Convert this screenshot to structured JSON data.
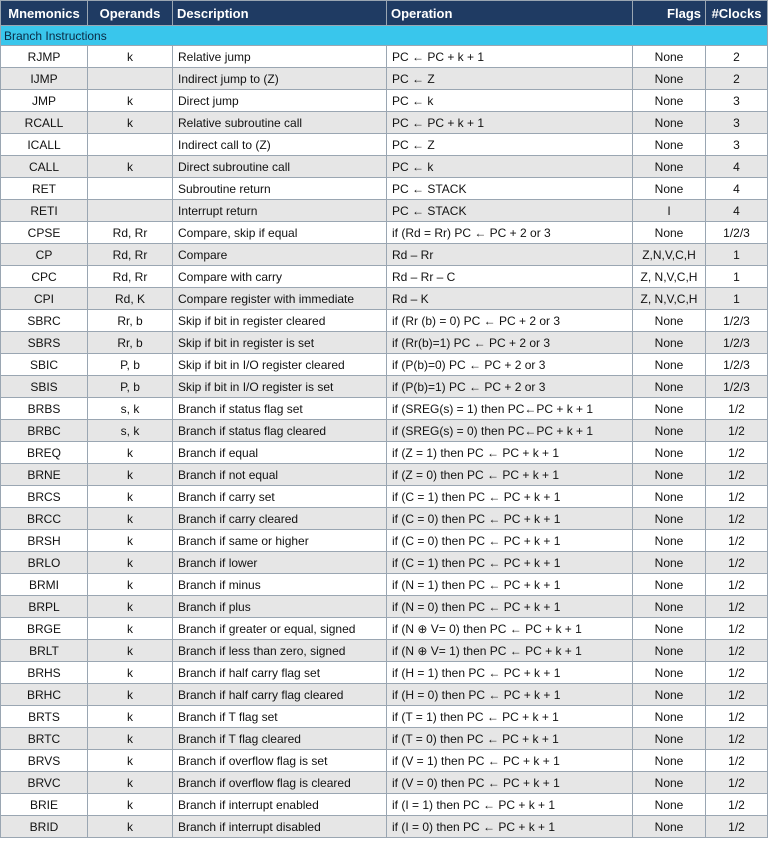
{
  "headers": {
    "mnemonics": "Mnemonics",
    "operands": "Operands",
    "description": "Description",
    "operation": "Operation",
    "flags": "Flags",
    "clocks": "#Clocks"
  },
  "section_title": "Branch Instructions",
  "rows": [
    [
      "RJMP",
      "k",
      "Relative jump",
      "PC ← PC + k + 1",
      "None",
      "2"
    ],
    [
      "IJMP",
      "",
      "Indirect jump to (Z)",
      "PC ← Z",
      "None",
      "2"
    ],
    [
      "JMP",
      "k",
      "Direct jump",
      "PC ← k",
      "None",
      "3"
    ],
    [
      "RCALL",
      "k",
      "Relative subroutine call",
      "PC ← PC + k + 1",
      "None",
      "3"
    ],
    [
      "ICALL",
      "",
      "Indirect call to (Z)",
      "PC ← Z",
      "None",
      "3"
    ],
    [
      "CALL",
      "k",
      "Direct subroutine call",
      "PC ← k",
      "None",
      "4"
    ],
    [
      "RET",
      "",
      "Subroutine return",
      "PC ← STACK",
      "None",
      "4"
    ],
    [
      "RETI",
      "",
      "Interrupt return",
      "PC ← STACK",
      "I",
      "4"
    ],
    [
      "CPSE",
      "Rd, Rr",
      "Compare, skip if equal",
      "if (Rd = Rr) PC ← PC + 2 or 3",
      "None",
      "1/2/3"
    ],
    [
      "CP",
      "Rd, Rr",
      "Compare",
      "Rd – Rr",
      "Z,N,V,C,H",
      "1"
    ],
    [
      "CPC",
      "Rd, Rr",
      "Compare with carry",
      "Rd – Rr – C",
      "Z, N,V,C,H",
      "1"
    ],
    [
      "CPI",
      "Rd, K",
      "Compare register with immediate",
      "Rd – K",
      "Z, N,V,C,H",
      "1"
    ],
    [
      "SBRC",
      "Rr, b",
      "Skip if bit in register cleared",
      "if (Rr (b) = 0) PC ← PC + 2 or 3",
      "None",
      "1/2/3"
    ],
    [
      "SBRS",
      "Rr, b",
      "Skip if bit in register is set",
      "if (Rr(b)=1) PC ← PC + 2 or 3",
      "None",
      "1/2/3"
    ],
    [
      "SBIC",
      "P, b",
      "Skip if bit in I/O register cleared",
      "if (P(b)=0) PC ← PC + 2 or 3",
      "None",
      "1/2/3"
    ],
    [
      "SBIS",
      "P, b",
      "Skip if bit in I/O register is set",
      "if (P(b)=1) PC ← PC + 2 or 3",
      "None",
      "1/2/3"
    ],
    [
      "BRBS",
      "s, k",
      "Branch if status flag set",
      "if (SREG(s) = 1) then PC←PC + k + 1",
      "None",
      "1/2"
    ],
    [
      "BRBC",
      "s, k",
      "Branch if status flag cleared",
      "if (SREG(s) = 0) then PC←PC + k + 1",
      "None",
      "1/2"
    ],
    [
      "BREQ",
      "k",
      "Branch if equal",
      "if (Z = 1) then PC ← PC + k + 1",
      "None",
      "1/2"
    ],
    [
      "BRNE",
      "k",
      "Branch if not equal",
      "if (Z = 0) then PC ← PC + k + 1",
      "None",
      "1/2"
    ],
    [
      "BRCS",
      "k",
      "Branch if carry set",
      "if (C = 1) then PC ← PC + k + 1",
      "None",
      "1/2"
    ],
    [
      "BRCC",
      "k",
      "Branch if carry cleared",
      "if (C = 0) then PC ← PC + k + 1",
      "None",
      "1/2"
    ],
    [
      "BRSH",
      "k",
      "Branch if same or higher",
      "if (C = 0) then PC ← PC + k + 1",
      "None",
      "1/2"
    ],
    [
      "BRLO",
      "k",
      "Branch if lower",
      "if (C = 1) then PC ← PC + k + 1",
      "None",
      "1/2"
    ],
    [
      "BRMI",
      "k",
      "Branch if minus",
      "if (N = 1) then PC ← PC + k + 1",
      "None",
      "1/2"
    ],
    [
      "BRPL",
      "k",
      "Branch if plus",
      "if (N = 0) then PC ← PC + k + 1",
      "None",
      "1/2"
    ],
    [
      "BRGE",
      "k",
      "Branch if greater or equal, signed",
      "if (N ⊕ V= 0) then PC ← PC + k + 1",
      "None",
      "1/2"
    ],
    [
      "BRLT",
      "k",
      "Branch if less than zero, signed",
      "if (N ⊕ V= 1) then PC ← PC + k + 1",
      "None",
      "1/2"
    ],
    [
      "BRHS",
      "k",
      "Branch if half carry flag set",
      "if (H = 1) then PC ← PC + k + 1",
      "None",
      "1/2"
    ],
    [
      "BRHC",
      "k",
      "Branch if half carry flag cleared",
      "if (H = 0) then PC ← PC + k + 1",
      "None",
      "1/2"
    ],
    [
      "BRTS",
      "k",
      "Branch if T flag set",
      "if (T = 1) then PC ← PC + k + 1",
      "None",
      "1/2"
    ],
    [
      "BRTC",
      "k",
      "Branch if T flag cleared",
      "if (T = 0) then PC ← PC + k + 1",
      "None",
      "1/2"
    ],
    [
      "BRVS",
      "k",
      "Branch if overflow flag is set",
      "if (V = 1) then PC ← PC + k + 1",
      "None",
      "1/2"
    ],
    [
      "BRVC",
      "k",
      "Branch if overflow flag is cleared",
      "if (V = 0) then PC ← PC + k + 1",
      "None",
      "1/2"
    ],
    [
      "BRIE",
      "k",
      "Branch if interrupt enabled",
      "if (I = 1) then PC ← PC + k + 1",
      "None",
      "1/2"
    ],
    [
      "BRID",
      "k",
      "Branch if interrupt disabled",
      "if (I = 0) then PC ← PC + k + 1",
      "None",
      "1/2"
    ]
  ],
  "colors": {
    "header_bg": "#1f3b63",
    "section_bg": "#39c6ec",
    "row_alt_bg": "#e6e6e6",
    "border": "#9aa6b2"
  }
}
